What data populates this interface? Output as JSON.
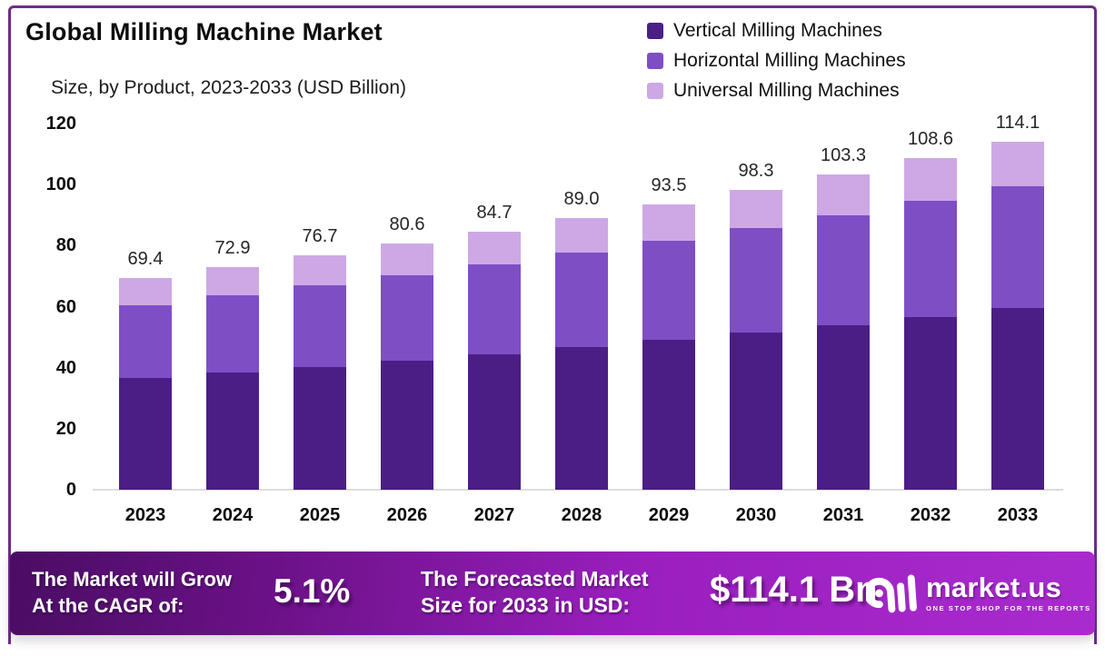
{
  "header": {
    "title": "Global Milling Machine Market",
    "subtitle": "Size, by Product, 2023-2033 (USD Billion)"
  },
  "legend": {
    "position": "top-right",
    "items": [
      {
        "label": "Vertical Milling Machines",
        "color": "#4b1e86"
      },
      {
        "label": "Horizontal Milling Machines",
        "color": "#7e4ec5"
      },
      {
        "label": "Universal Milling Machines",
        "color": "#cda8e5"
      }
    ]
  },
  "chart_data": {
    "type": "bar",
    "subtype": "stacked-vertical",
    "title": "Global Milling Machine Market Size, by Product, 2023-2033 (USD Billion)",
    "categories": [
      "2023",
      "2024",
      "2025",
      "2026",
      "2027",
      "2028",
      "2029",
      "2030",
      "2031",
      "2032",
      "2033"
    ],
    "series": [
      {
        "name": "Vertical Milling Machines",
        "color": "#4b1e86",
        "values": [
          36.5,
          38.3,
          40.3,
          42.4,
          44.5,
          46.7,
          49.0,
          51.5,
          54.0,
          56.7,
          59.6
        ]
      },
      {
        "name": "Horizontal Milling Machines",
        "color": "#7e4ec5",
        "values": [
          24.1,
          25.4,
          26.6,
          28.0,
          29.4,
          31.0,
          32.6,
          34.2,
          36.0,
          37.9,
          39.8
        ]
      },
      {
        "name": "Universal Milling Machines",
        "color": "#cda8e5",
        "values": [
          8.8,
          9.2,
          9.8,
          10.2,
          10.8,
          11.3,
          11.9,
          12.6,
          13.3,
          14.0,
          14.7
        ]
      }
    ],
    "totals": [
      "69.4",
      "72.9",
      "76.7",
      "80.6",
      "84.7",
      "89.0",
      "93.5",
      "98.3",
      "103.3",
      "108.6",
      "114.1"
    ],
    "xlabel": "",
    "ylabel": "",
    "ylim": [
      0,
      120
    ],
    "yticks": [
      "0",
      "20",
      "40",
      "60",
      "80",
      "100",
      "120"
    ],
    "grid": false,
    "legend_position": "top-right"
  },
  "banner": {
    "cagr_label_line1": "The Market will Grow",
    "cagr_label_line2": "At the CAGR of:",
    "cagr_value": "5.1%",
    "forecast_label_line1": "The Forecasted Market",
    "forecast_label_line2": "Size for 2033 in USD:",
    "forecast_value": "$114.1 Bn",
    "logo_text": "market.us",
    "logo_tagline": "ONE STOP SHOP FOR THE REPORTS",
    "gradient_left": "#4a0d63",
    "gradient_right": "#a92bce"
  }
}
